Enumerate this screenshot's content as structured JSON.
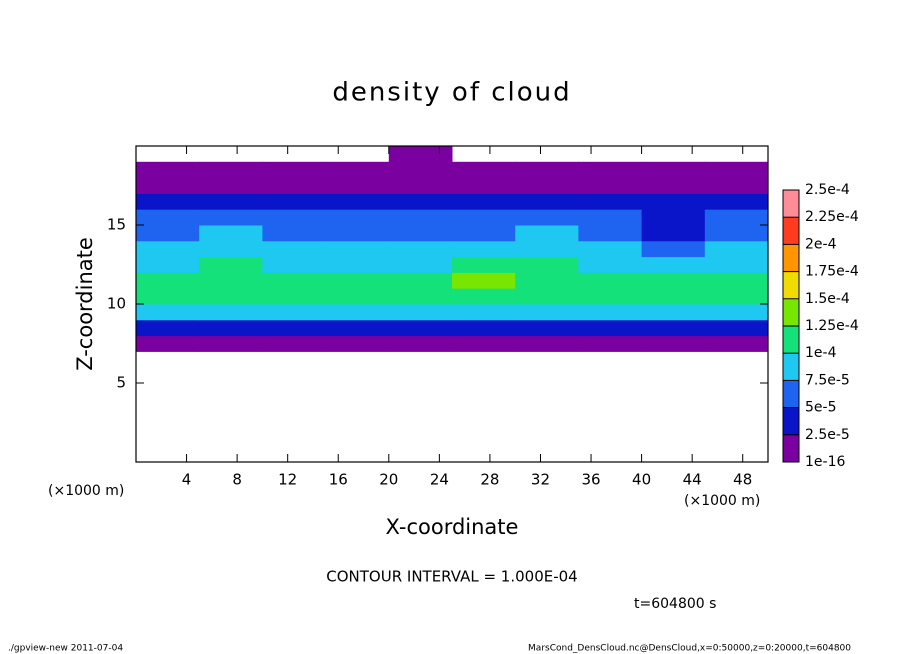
{
  "chart_data": {
    "type": "heatmap",
    "title": "density of cloud",
    "xlabel": "X-coordinate",
    "ylabel": "Z-coordinate",
    "xunit": "(×1000 m)",
    "yunit": "(×1000 m)",
    "xlim": [
      0,
      50
    ],
    "ylim": [
      0,
      20
    ],
    "xticks": [
      4,
      8,
      12,
      16,
      20,
      24,
      28,
      32,
      36,
      40,
      44,
      48
    ],
    "yticks": [
      5,
      10,
      15
    ],
    "x": [
      0,
      5,
      10,
      15,
      20,
      25,
      30,
      35,
      40,
      45,
      50
    ],
    "z": [
      0,
      1,
      2,
      3,
      4,
      5,
      6,
      7,
      8,
      9,
      10,
      11,
      12,
      13,
      14,
      15,
      16,
      17,
      18,
      19,
      20
    ],
    "values": [
      [
        null,
        null,
        null,
        null,
        null,
        null,
        null,
        null,
        null,
        null
      ],
      [
        null,
        null,
        null,
        null,
        null,
        null,
        null,
        null,
        null,
        null
      ],
      [
        null,
        null,
        null,
        null,
        null,
        null,
        null,
        null,
        null,
        null
      ],
      [
        null,
        null,
        null,
        null,
        null,
        null,
        null,
        null,
        null,
        null
      ],
      [
        null,
        null,
        null,
        null,
        null,
        null,
        null,
        null,
        null,
        null
      ],
      [
        null,
        null,
        null,
        null,
        null,
        null,
        null,
        null,
        null,
        null
      ],
      [
        null,
        null,
        null,
        null,
        null,
        null,
        null,
        null,
        null,
        null
      ],
      [
        1.2e-05,
        1.1e-05,
        1e-05,
        1.2e-05,
        9e-06,
        1.1e-05,
        1.3e-05,
        1e-05,
        1.2e-05,
        1.1e-05
      ],
      [
        3.8e-05,
        3.5e-05,
        3.6e-05,
        3.4e-05,
        3.2e-05,
        3.7e-05,
        3.9e-05,
        3.3e-05,
        3.5e-05,
        3.6e-05
      ],
      [
        7.8e-05,
        8.2e-05,
        7.6e-05,
        8e-05,
        7.9e-05,
        8.3e-05,
        8.1e-05,
        7.7e-05,
        8e-05,
        7.8e-05
      ],
      [
        0.000105,
        0.000112,
        0.000104,
        0.000108,
        0.00011,
        0.000115,
        0.000113,
        0.000106,
        0.000109,
        0.000107
      ],
      [
        0.000108,
        0.000118,
        0.000107,
        0.00011,
        0.000114,
        0.000127,
        0.00012,
        0.000112,
        0.000103,
        0.000105
      ],
      [
        9.2e-05,
        0.000102,
        9.5e-05,
        9.1e-05,
        9.4e-05,
        0.000103,
        0.000101,
        9.6e-05,
        8.8e-05,
        8.6e-05
      ],
      [
        8.2e-05,
        8.8e-05,
        8.1e-05,
        7.9e-05,
        8.3e-05,
        8e-05,
        8.6e-05,
        8.2e-05,
        5.8e-05,
        7.6e-05
      ],
      [
        6.8e-05,
        7.6e-05,
        6.4e-05,
        6.6e-05,
        6.9e-05,
        6.5e-05,
        7.7e-05,
        6.7e-05,
        4.6e-05,
        6.2e-05
      ],
      [
        5.4e-05,
        5.8e-05,
        5.2e-05,
        5.5e-05,
        5.3e-05,
        5.1e-05,
        5.6e-05,
        5.4e-05,
        4.8e-05,
        5.2e-05
      ],
      [
        3.4e-05,
        3.6e-05,
        3.2e-05,
        3.5e-05,
        3.3e-05,
        3.1e-05,
        3.4e-05,
        3.6e-05,
        3.3e-05,
        3.2e-05
      ],
      [
        1.6e-05,
        1.5e-05,
        1.7e-05,
        1.4e-05,
        1.6e-05,
        1.5e-05,
        1.6e-05,
        1.4e-05,
        1.5e-05,
        1.7e-05
      ],
      [
        6e-06,
        5e-06,
        4e-06,
        5e-06,
        7e-06,
        5e-06,
        4e-06,
        5e-06,
        6e-06,
        5e-06
      ],
      [
        null,
        null,
        null,
        null,
        3e-06,
        null,
        null,
        null,
        null,
        null
      ]
    ],
    "levels": [
      1e-16,
      {
        "value": 2.5e-05,
        "label": "2.5e-5"
      },
      {
        "value": 5e-05,
        "label": "5e-5"
      },
      {
        "value": 7.5e-05,
        "label": "7.5e-5"
      },
      {
        "value": 0.0001,
        "label": "1e-4"
      },
      {
        "value": 0.000125,
        "label": "1.25e-4"
      },
      {
        "value": 0.00015,
        "label": "1.5e-4"
      },
      {
        "value": 0.000175,
        "label": "1.75e-4"
      },
      {
        "value": 0.0002,
        "label": "2e-4"
      },
      {
        "value": 0.000225,
        "label": "2.25e-4"
      },
      {
        "value": 0.00025,
        "label": "2.5e-4"
      }
    ],
    "colors": [
      "#7a00a0",
      "#0a14c8",
      "#1e64f0",
      "#1ec8f0",
      "#14e17a",
      "#78e600",
      "#f0dc00",
      "#ff9600",
      "#ff3c1e",
      "#ff8c96"
    ],
    "contour_note": "CONTOUR INTERVAL = 1.000E-04",
    "time_note": "t=604800 s",
    "footer_left": "./gpview-new  2011-07-04",
    "footer_right": "MarsCond_DensCloud.nc@DensCloud,x=0:50000,z=0:20000,t=604800"
  }
}
